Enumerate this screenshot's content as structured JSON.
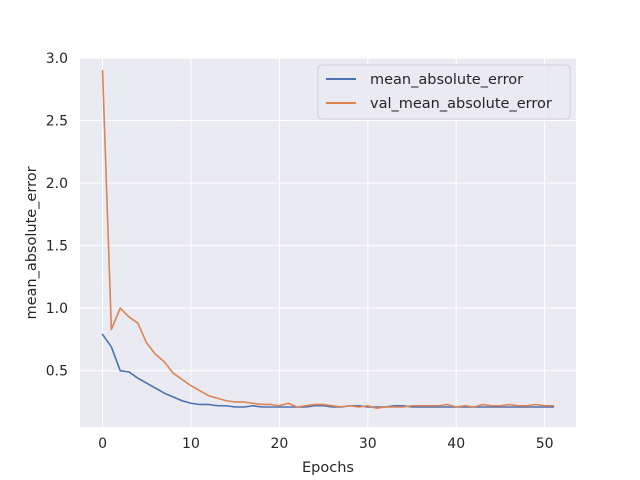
{
  "chart_data": {
    "type": "line",
    "title": "",
    "xlabel": "Epochs",
    "ylabel": "mean_absolute_error",
    "xlim": [
      -2.55,
      53.55
    ],
    "ylim": [
      0.05,
      3.0
    ],
    "xticks": [
      0,
      10,
      20,
      30,
      40,
      50
    ],
    "yticks": [
      0.5,
      1.0,
      1.5,
      2.0,
      2.5,
      3.0
    ],
    "xtick_labels": [
      "0",
      "10",
      "20",
      "30",
      "40",
      "50"
    ],
    "ytick_labels": [
      "0.5",
      "1.0",
      "1.5",
      "2.0",
      "2.5",
      "3.0"
    ],
    "grid": true,
    "legend_position": "top-right",
    "x": [
      0,
      1,
      2,
      3,
      4,
      5,
      6,
      7,
      8,
      9,
      10,
      11,
      12,
      13,
      14,
      15,
      16,
      17,
      18,
      19,
      20,
      21,
      22,
      23,
      24,
      25,
      26,
      27,
      28,
      29,
      30,
      31,
      32,
      33,
      34,
      35,
      36,
      37,
      38,
      39,
      40,
      41,
      42,
      43,
      44,
      45,
      46,
      47,
      48,
      49,
      50,
      51
    ],
    "series": [
      {
        "name": "mean_absolute_error",
        "color": "#4c72b0",
        "values": [
          0.79,
          0.69,
          0.5,
          0.49,
          0.44,
          0.4,
          0.36,
          0.32,
          0.29,
          0.26,
          0.24,
          0.23,
          0.23,
          0.22,
          0.22,
          0.21,
          0.21,
          0.22,
          0.21,
          0.21,
          0.21,
          0.21,
          0.21,
          0.21,
          0.22,
          0.22,
          0.21,
          0.21,
          0.22,
          0.22,
          0.21,
          0.21,
          0.21,
          0.22,
          0.22,
          0.21,
          0.21,
          0.21,
          0.21,
          0.21,
          0.21,
          0.21,
          0.21,
          0.21,
          0.21,
          0.21,
          0.21,
          0.21,
          0.21,
          0.21,
          0.21,
          0.21
        ]
      },
      {
        "name": "val_mean_absolute_error",
        "color": "#dd8452",
        "values": [
          2.9,
          0.83,
          1.0,
          0.93,
          0.88,
          0.72,
          0.63,
          0.57,
          0.48,
          0.43,
          0.38,
          0.34,
          0.3,
          0.28,
          0.26,
          0.25,
          0.25,
          0.24,
          0.23,
          0.23,
          0.22,
          0.24,
          0.21,
          0.22,
          0.23,
          0.23,
          0.22,
          0.21,
          0.22,
          0.21,
          0.22,
          0.2,
          0.21,
          0.21,
          0.21,
          0.22,
          0.22,
          0.22,
          0.22,
          0.23,
          0.21,
          0.22,
          0.21,
          0.23,
          0.22,
          0.22,
          0.23,
          0.22,
          0.22,
          0.23,
          0.22,
          0.22
        ]
      }
    ]
  }
}
